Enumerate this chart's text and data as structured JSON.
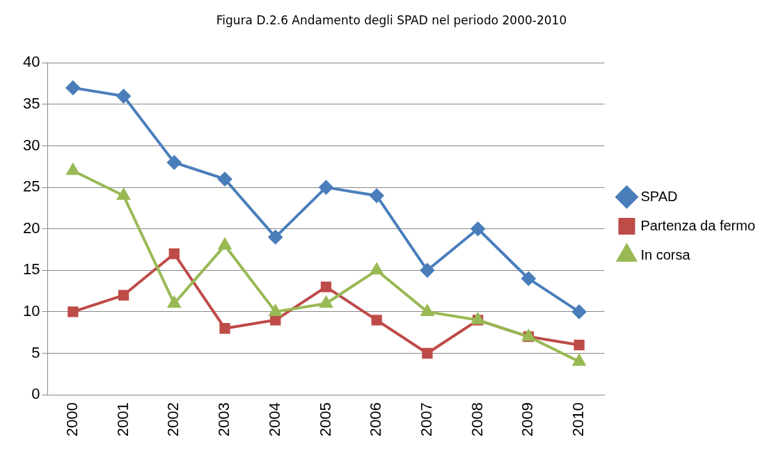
{
  "chart_data": {
    "type": "line",
    "title": "Figura D.2.6 Andamento degli SPAD nel periodo 2000-2010",
    "categories": [
      "2000",
      "2001",
      "2002",
      "2003",
      "2004",
      "2005",
      "2006",
      "2007",
      "2008",
      "2009",
      "2010"
    ],
    "series": [
      {
        "name": "SPAD",
        "color": "#4a7ebb",
        "marker": "diamond",
        "values": [
          37,
          36,
          28,
          26,
          19,
          25,
          24,
          15,
          20,
          14,
          10
        ]
      },
      {
        "name": "Partenza da fermo",
        "color": "#be4b48",
        "marker": "square",
        "values": [
          10,
          12,
          17,
          8,
          9,
          13,
          9,
          5,
          9,
          7,
          6
        ]
      },
      {
        "name": "In corsa",
        "color": "#98b954",
        "marker": "triangle",
        "values": [
          27,
          24,
          11,
          18,
          10,
          11,
          15,
          10,
          9,
          7,
          4
        ]
      }
    ],
    "ylim": [
      0,
      40
    ],
    "yticks": [
      0,
      5,
      10,
      15,
      20,
      25,
      30,
      35,
      40
    ],
    "grid": "y",
    "legend": "right",
    "line_style": "solid"
  }
}
